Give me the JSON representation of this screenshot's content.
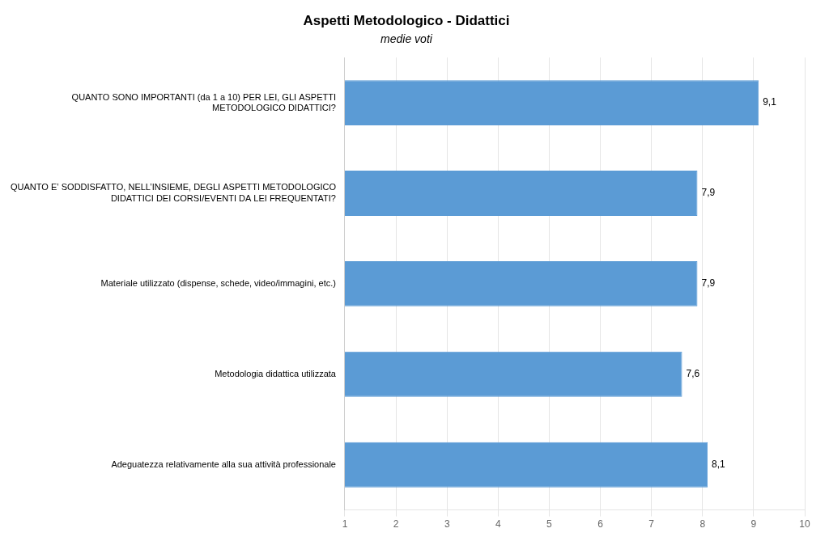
{
  "chart_data": {
    "type": "bar",
    "orientation": "horizontal",
    "title": "Aspetti Metodologico - Didattici",
    "subtitle": "medie voti",
    "categories": [
      "Adeguatezza relativamente alla sua attività professionale",
      "Metodologia didattica utilizzata",
      "Materiale utilizzato (dispense, schede, video/immagini, etc.)",
      "QUANTO E’ SODDISFATTO, NELL’INSIEME, DEGLI ASPETTI METODOLOGICO\nDIDATTICI DEI CORSI/EVENTI DA LEI FREQUENTATI?",
      "QUANTO SONO IMPORTANTI (da 1 a 10) PER LEI, GLI ASPETTI\nMETODOLOGICO DIDATTICI?"
    ],
    "values": [
      8.1,
      7.6,
      7.9,
      7.9,
      9.1
    ],
    "value_labels": [
      "8,1",
      "7,6",
      "7,9",
      "7,9",
      "9,1"
    ],
    "data_labels": true,
    "color": "#5B9BD5",
    "xlim": [
      1,
      10
    ],
    "xticks": [
      1,
      2,
      3,
      4,
      5,
      6,
      7,
      8,
      9,
      10
    ],
    "grid": true
  }
}
